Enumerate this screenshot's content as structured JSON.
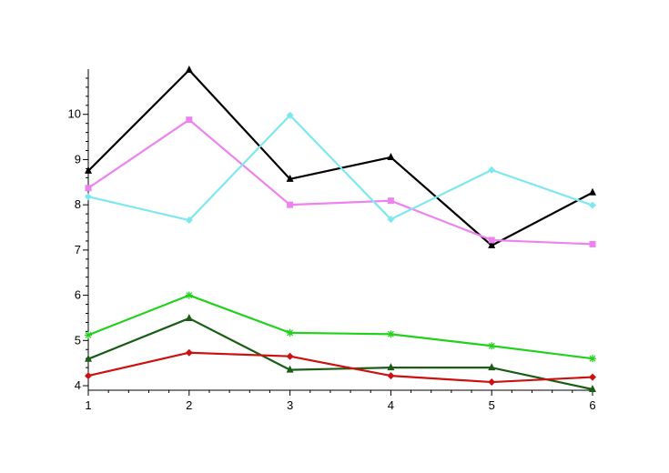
{
  "chart_data": {
    "type": "line",
    "title": "",
    "xlabel": "",
    "ylabel": "",
    "x": [
      1,
      2,
      3,
      4,
      5,
      6
    ],
    "xlim": [
      1,
      6
    ],
    "ylim": [
      3.9,
      11
    ],
    "x_ticks": [
      "1",
      "2",
      "3",
      "4",
      "5",
      "6"
    ],
    "y_ticks": [
      "4",
      "5",
      "6",
      "7",
      "8",
      "9",
      "10"
    ],
    "grid": false,
    "legend": "none",
    "series": [
      {
        "color": "#000000",
        "marker": "triangle",
        "values": [
          8.75,
          10.98,
          8.57,
          9.05,
          7.1,
          8.27
        ]
      },
      {
        "color": "#ee82ee",
        "marker": "square",
        "values": [
          8.37,
          9.88,
          8.0,
          8.09,
          7.22,
          7.13
        ]
      },
      {
        "color": "#7fe7ef",
        "marker": "diamond",
        "values": [
          8.18,
          7.66,
          9.98,
          7.68,
          8.77,
          7.99
        ]
      },
      {
        "color": "#22d11c",
        "marker": "star",
        "values": [
          5.12,
          6.0,
          5.17,
          5.14,
          4.88,
          4.6
        ]
      },
      {
        "color": "#1a5e16",
        "marker": "triangle",
        "values": [
          4.59,
          5.49,
          4.35,
          4.4,
          4.4,
          3.92
        ]
      },
      {
        "color": "#cc1111",
        "marker": "diamond",
        "values": [
          4.22,
          4.73,
          4.65,
          4.22,
          4.08,
          4.19
        ]
      }
    ]
  }
}
